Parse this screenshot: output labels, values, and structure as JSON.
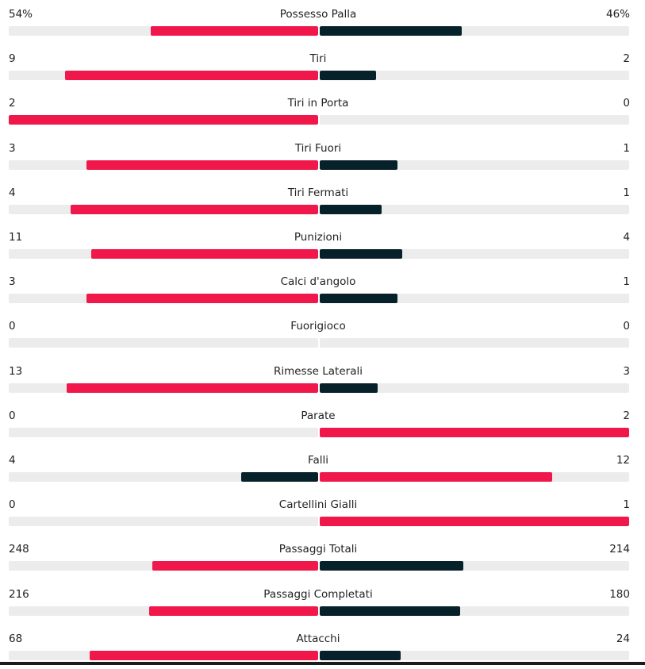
{
  "colors": {
    "leader": "#f0174b",
    "trailer": "#062129",
    "track": "#ececec"
  },
  "stats": [
    {
      "label": "Possesso Palla",
      "home": "54%",
      "away": "46%",
      "home_value": 54,
      "away_value": 46
    },
    {
      "label": "Tiri",
      "home": "9",
      "away": "2",
      "home_value": 9,
      "away_value": 2
    },
    {
      "label": "Tiri in Porta",
      "home": "2",
      "away": "0",
      "home_value": 2,
      "away_value": 0
    },
    {
      "label": "Tiri Fuori",
      "home": "3",
      "away": "1",
      "home_value": 3,
      "away_value": 1
    },
    {
      "label": "Tiri Fermati",
      "home": "4",
      "away": "1",
      "home_value": 4,
      "away_value": 1
    },
    {
      "label": "Punizioni",
      "home": "11",
      "away": "4",
      "home_value": 11,
      "away_value": 4
    },
    {
      "label": "Calci d'angolo",
      "home": "3",
      "away": "1",
      "home_value": 3,
      "away_value": 1
    },
    {
      "label": "Fuorigioco",
      "home": "0",
      "away": "0",
      "home_value": 0,
      "away_value": 0
    },
    {
      "label": "Rimesse Laterali",
      "home": "13",
      "away": "3",
      "home_value": 13,
      "away_value": 3
    },
    {
      "label": "Parate",
      "home": "0",
      "away": "2",
      "home_value": 0,
      "away_value": 2
    },
    {
      "label": "Falli",
      "home": "4",
      "away": "12",
      "home_value": 4,
      "away_value": 12
    },
    {
      "label": "Cartellini Gialli",
      "home": "0",
      "away": "1",
      "home_value": 0,
      "away_value": 1
    },
    {
      "label": "Passaggi Totali",
      "home": "248",
      "away": "214",
      "home_value": 248,
      "away_value": 214
    },
    {
      "label": "Passaggi Completati",
      "home": "216",
      "away": "180",
      "home_value": 216,
      "away_value": 180
    },
    {
      "label": "Attacchi",
      "home": "68",
      "away": "24",
      "home_value": 68,
      "away_value": 24
    }
  ]
}
